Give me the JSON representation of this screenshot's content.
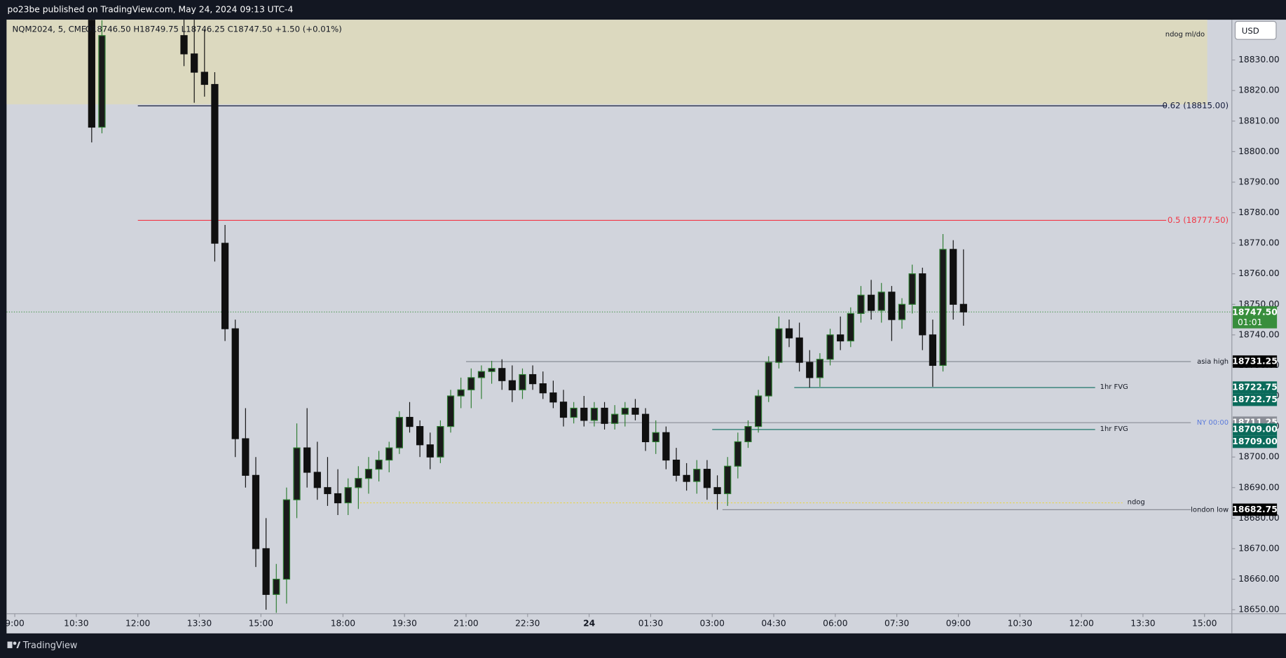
{
  "header": "po23be published on TradingView.com, May 24, 2024 09:13 UTC-4",
  "footer": "TradingView",
  "chart_data": {
    "type": "candlestick",
    "symbol": "NQM2024, 5, CME",
    "ohlc_legend": "O18746.50 H18749.75 L18746.25 C18747.50 +1.50 (+0.01%)",
    "currency": "USD",
    "up_color": "#2e7d32",
    "down_color": "#101010",
    "x": [
      21,
      24,
      48,
      51,
      54,
      57,
      60,
      63,
      66,
      69,
      72,
      75,
      78,
      81,
      84,
      87,
      90,
      93,
      96,
      99,
      102,
      105,
      108,
      111,
      114,
      117,
      120,
      123,
      126,
      129,
      132,
      135,
      138,
      141,
      144,
      147,
      150,
      153,
      156,
      159,
      162,
      165,
      168,
      171,
      174,
      177,
      180,
      183,
      186,
      189,
      192,
      195,
      198,
      201,
      204,
      207,
      210,
      213,
      216,
      219,
      222,
      225,
      228,
      231,
      234,
      237,
      240,
      243,
      246,
      249,
      252,
      255,
      258,
      261,
      264,
      267,
      270,
      273,
      276
    ],
    "open": [
      18845,
      18808,
      18838,
      18832,
      18826,
      18822,
      18770,
      18742,
      18706,
      18694,
      18670,
      18655,
      18660,
      18686,
      18703,
      18695,
      18690,
      18688,
      18685,
      18690,
      18693,
      18696,
      18699,
      18703,
      18713,
      18710,
      18704,
      18700,
      18710,
      18720,
      18722,
      18726,
      18728,
      18729,
      18725,
      18722,
      18727,
      18724,
      18721,
      18718,
      18713,
      18716,
      18712,
      18716,
      18711,
      18714,
      18716,
      18714,
      18705,
      18708,
      18699,
      18694,
      18692,
      18696,
      18690,
      18688,
      18697,
      18705,
      18710,
      18720,
      18731,
      18742,
      18739,
      18731,
      18726,
      18732,
      18740,
      18738,
      18747,
      18753,
      18748,
      18754,
      18745,
      18750,
      18760,
      18740,
      18730,
      18768,
      18750
    ],
    "high": [
      18848,
      18843,
      18846,
      18845,
      18840,
      18826,
      18776,
      18745,
      18716,
      18700,
      18680,
      18665,
      18690,
      18711,
      18716,
      18705,
      18700,
      18696,
      18693,
      18697,
      18700,
      18702,
      18705,
      18715,
      18718,
      18712,
      18708,
      18712,
      18722,
      18726,
      18729,
      18730,
      18731.5,
      18732,
      18730,
      18729,
      18730,
      18728,
      18725,
      18722,
      18718,
      18720,
      18718,
      18718,
      18717,
      18718,
      18719,
      18716,
      18712,
      18710,
      18703,
      18698,
      18699,
      18699,
      18694,
      18700,
      18708,
      18712,
      18722,
      18733,
      18746,
      18745,
      18744,
      18735,
      18734,
      18742,
      18746,
      18749,
      18756,
      18758,
      18757,
      18756,
      18752,
      18763,
      18762,
      18745,
      18773,
      18771,
      18768
    ],
    "low": [
      18803,
      18806,
      18828,
      18816,
      18818,
      18764,
      18738,
      18700,
      18690,
      18664,
      18650,
      18649,
      18652,
      18680,
      18690,
      18686,
      18684,
      18681,
      18681,
      18683,
      18688,
      18692,
      18695,
      18701,
      18708,
      18700,
      18696,
      18698,
      18708,
      18716,
      18716,
      18719,
      18724,
      18722,
      18718,
      18719,
      18722,
      18719,
      18716,
      18710,
      18711,
      18710,
      18710,
      18709,
      18709,
      18710,
      18712,
      18702,
      18701,
      18696,
      18692,
      18689,
      18688,
      18686,
      18682.75,
      18684,
      18693,
      18703,
      18708,
      18718,
      18729,
      18736,
      18728,
      18722.75,
      18723,
      18730,
      18735,
      18736,
      18744,
      18745,
      18744,
      18738,
      18742,
      18747,
      18735,
      18723,
      18728,
      18745,
      18743
    ],
    "close": [
      18808,
      18838,
      18832,
      18826,
      18822,
      18770,
      18742,
      18706,
      18694,
      18670,
      18655,
      18660,
      18686,
      18703,
      18695,
      18690,
      18688,
      18685,
      18690,
      18693,
      18696,
      18699,
      18703,
      18713,
      18710,
      18704,
      18700,
      18710,
      18720,
      18722,
      18726,
      18728,
      18729,
      18725,
      18722,
      18727,
      18724,
      18721,
      18718,
      18713,
      18716,
      18712,
      18716,
      18711,
      18714,
      18716,
      18714,
      18705,
      18708,
      18699,
      18694,
      18692,
      18696,
      18690,
      18688,
      18697,
      18705,
      18710,
      18720,
      18731,
      18742,
      18739,
      18731,
      18726,
      18732,
      18740,
      18738,
      18747,
      18753,
      18748,
      18754,
      18745,
      18750,
      18760,
      18740,
      18730,
      18768,
      18750,
      18747.5
    ],
    "xlim": [
      -2.4,
      356
    ],
    "xticks": [
      {
        "value": 0,
        "label": "9:00"
      },
      {
        "value": 18,
        "label": "10:30"
      },
      {
        "value": 36,
        "label": "12:00"
      },
      {
        "value": 54,
        "label": "13:30"
      },
      {
        "value": 72,
        "label": "15:00"
      },
      {
        "value": 96,
        "label": "18:00"
      },
      {
        "value": 114,
        "label": "19:30"
      },
      {
        "value": 132,
        "label": "21:00"
      },
      {
        "value": 150,
        "label": "22:30"
      },
      {
        "value": 168,
        "label": "24"
      },
      {
        "value": 186,
        "label": "01:30"
      },
      {
        "value": 204,
        "label": "03:00"
      },
      {
        "value": 222,
        "label": "04:30"
      },
      {
        "value": 240,
        "label": "06:00"
      },
      {
        "value": 258,
        "label": "07:30"
      },
      {
        "value": 276,
        "label": "09:00"
      },
      {
        "value": 294,
        "label": "10:30"
      },
      {
        "value": 312,
        "label": "12:00"
      },
      {
        "value": 330,
        "label": "13:30"
      },
      {
        "value": 348,
        "label": "15:00"
      }
    ],
    "ylim": [
      18648.7,
      18843.2
    ],
    "yticks": [
      {
        "value": 18650,
        "label": "18650.00"
      },
      {
        "value": 18660,
        "label": "18660.00"
      },
      {
        "value": 18670,
        "label": "18670.00"
      },
      {
        "value": 18680,
        "label": "18680.00"
      },
      {
        "value": 18690,
        "label": "18690.00"
      },
      {
        "value": 18700,
        "label": "18700.00"
      },
      {
        "value": 18710,
        "label": "18710.00"
      },
      {
        "value": 18720,
        "label": "18720.00"
      },
      {
        "value": 18730,
        "label": "18730.00"
      },
      {
        "value": 18740,
        "label": "18740.00"
      },
      {
        "value": 18750,
        "label": "18750.00"
      },
      {
        "value": 18760,
        "label": "18760.00"
      },
      {
        "value": 18770,
        "label": "18770.00"
      },
      {
        "value": 18780,
        "label": "18780.00"
      },
      {
        "value": 18790,
        "label": "18790.00"
      },
      {
        "value": 18800,
        "label": "18800.00"
      },
      {
        "value": 18810,
        "label": "18810.00"
      },
      {
        "value": 18820,
        "label": "18820.00"
      },
      {
        "value": 18830,
        "label": "18830.00"
      }
    ],
    "zones": [
      {
        "label": "ndog ml/do",
        "low": 18815.5,
        "high": 18843.2,
        "x_end": 348.8,
        "color": "#dcd9bf"
      }
    ],
    "levels": [
      {
        "label": "0.62 (18815.00)",
        "value": 18815,
        "color": "#131a3a",
        "x_start": 36
      },
      {
        "label": "0.5 (18777.50)",
        "value": 18777.5,
        "color": "#f23645",
        "x_start": 36
      },
      {
        "label": "asia high",
        "value": 18731.25,
        "value_label": "18731.25",
        "color": "#8a8d96",
        "x_start": 132,
        "badges": 1,
        "badge_color": "#000000"
      },
      {
        "label": "1hr FVG",
        "value": 18722.75,
        "value_label": "18722.75",
        "color": "#0b6b5b",
        "x_start": 228,
        "x_end": 316,
        "badges": 2,
        "badge_color": "#0b6b5b"
      },
      {
        "label": "NY 00:00",
        "value": 18711.25,
        "value_label": "18711.25",
        "color": "#8a8d96",
        "label_color": "#5b7bdb",
        "x_start": 168,
        "badges": 1,
        "badge_color": "#8a8d96"
      },
      {
        "label": "1hr FVG",
        "value": 18709,
        "value_label": "18709.00",
        "color": "#0b6b5b",
        "x_start": 204,
        "x_end": 316,
        "badges": 2,
        "badge_color": "#0b6b5b"
      },
      {
        "label": "ndog",
        "value": 18685,
        "color": "#e8d44d",
        "dotted": true,
        "x_start": 101,
        "x_end": 324
      },
      {
        "label": "london low",
        "value": 18682.75,
        "value_label": "18682.75",
        "color": "#8a8d96",
        "x_start": 207,
        "badges": 1,
        "badge_color": "#000000"
      }
    ],
    "last_price": {
      "value": 18747.5,
      "value_label": "18747.50",
      "countdown": "01:01",
      "color": "#388e3c"
    }
  }
}
